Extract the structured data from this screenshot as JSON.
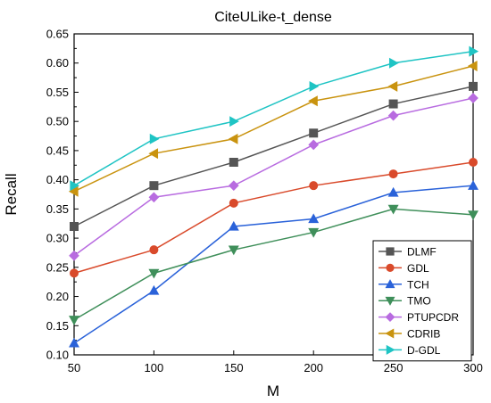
{
  "chart_data": {
    "type": "line",
    "title": "CiteULike-t_dense",
    "xlabel": "M",
    "ylabel": "Recall",
    "x": [
      50,
      100,
      150,
      200,
      250,
      300
    ],
    "xlim": [
      50,
      300
    ],
    "ylim": [
      0.1,
      0.65
    ],
    "xticks": [
      "50",
      "100",
      "150",
      "200",
      "250",
      "300"
    ],
    "yticks": [
      "0.10",
      "0.15",
      "0.20",
      "0.25",
      "0.30",
      "0.35",
      "0.40",
      "0.45",
      "0.50",
      "0.55",
      "0.60",
      "0.65"
    ],
    "grid": false,
    "legend_position": "bottom-right",
    "series": [
      {
        "name": "DLMF",
        "color": "#555555",
        "marker": "square",
        "values": [
          0.32,
          0.39,
          0.43,
          0.48,
          0.53,
          0.56
        ]
      },
      {
        "name": "GDL",
        "color": "#d94a2b",
        "marker": "circle",
        "values": [
          0.24,
          0.28,
          0.36,
          0.39,
          0.41,
          0.43
        ]
      },
      {
        "name": "TCH",
        "color": "#2a62d9",
        "marker": "triangle-up",
        "values": [
          0.12,
          0.21,
          0.32,
          0.333,
          0.378,
          0.39
        ]
      },
      {
        "name": "TMO",
        "color": "#3f8f5a",
        "marker": "triangle-down",
        "values": [
          0.16,
          0.24,
          0.28,
          0.31,
          0.35,
          0.34
        ]
      },
      {
        "name": "PTUPCDR",
        "color": "#b86be0",
        "marker": "diamond",
        "values": [
          0.27,
          0.37,
          0.39,
          0.46,
          0.51,
          0.54
        ]
      },
      {
        "name": "CDRIB",
        "color": "#c9930f",
        "marker": "triangle-left",
        "values": [
          0.38,
          0.445,
          0.47,
          0.535,
          0.56,
          0.595
        ]
      },
      {
        "name": "D-GDL",
        "color": "#1fc4c4",
        "marker": "triangle-right",
        "values": [
          0.39,
          0.47,
          0.5,
          0.56,
          0.6,
          0.62
        ]
      }
    ]
  }
}
